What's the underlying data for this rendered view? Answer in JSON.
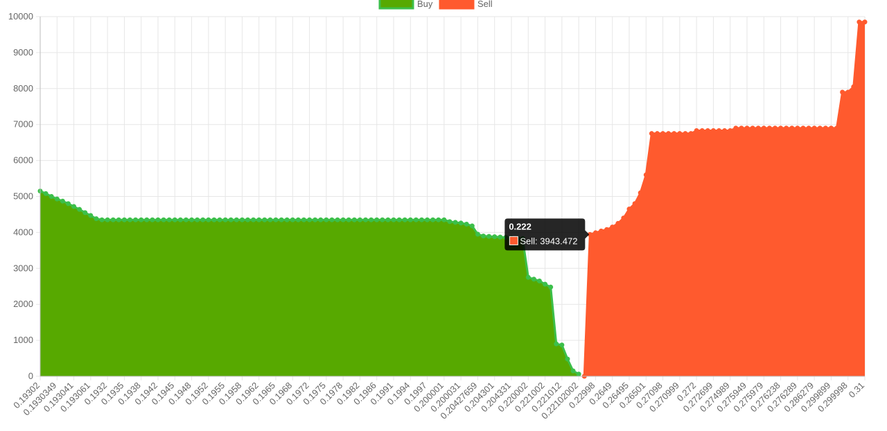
{
  "chart_data": {
    "type": "area",
    "categories": [
      "0.19302",
      null,
      null,
      "0.1930349",
      null,
      null,
      "0.193041",
      null,
      null,
      "0.193061",
      null,
      null,
      "0.1932",
      null,
      null,
      "0.1935",
      null,
      null,
      "0.1938",
      null,
      null,
      "0.1942",
      null,
      null,
      "0.1945",
      null,
      null,
      "0.1948",
      null,
      null,
      "0.1952",
      null,
      null,
      "0.1955",
      null,
      null,
      "0.1958",
      null,
      null,
      "0.1962",
      null,
      null,
      "0.1965",
      null,
      null,
      "0.1968",
      null,
      null,
      "0.1972",
      null,
      null,
      "0.1975",
      null,
      null,
      "0.1978",
      null,
      null,
      "0.1982",
      null,
      null,
      "0.1986",
      null,
      null,
      "0.1991",
      null,
      null,
      "0.1994",
      null,
      null,
      "0.1997",
      null,
      null,
      "0.200001",
      null,
      null,
      "0.200031",
      null,
      null,
      "0.20427659",
      null,
      null,
      "0.204301",
      null,
      null,
      "0.204331",
      null,
      null,
      "0.220002",
      null,
      null,
      "0.221002",
      null,
      null,
      "0.221012",
      null,
      null,
      "0.22102002",
      null,
      null,
      "0.22998",
      null,
      null,
      "0.2649",
      null,
      null,
      "0.26495",
      null,
      null,
      "0.26501",
      null,
      null,
      "0.27098",
      null,
      null,
      "0.270999",
      null,
      null,
      "0.272",
      null,
      null,
      "0.272699",
      null,
      null,
      "0.274989",
      null,
      null,
      "0.275949",
      null,
      null,
      "0.275979",
      null,
      null,
      "0.276238",
      null,
      null,
      "0.276289",
      null,
      null,
      "0.286279",
      null,
      null,
      "0.299899",
      null,
      null,
      "0.299998",
      null,
      null,
      "0.31"
    ],
    "series": [
      {
        "name": "Buy",
        "color": "#57a900",
        "stroke": "#3cbf4a",
        "values": [
          5150,
          5080,
          5000,
          4930,
          4870,
          4800,
          4720,
          4640,
          4550,
          4470,
          4380,
          4350,
          4350,
          4350,
          4350,
          4350,
          4350,
          4350,
          4350,
          4350,
          4350,
          4350,
          4350,
          4350,
          4350,
          4350,
          4350,
          4350,
          4350,
          4350,
          4350,
          4350,
          4350,
          4350,
          4350,
          4350,
          4350,
          4350,
          4350,
          4350,
          4350,
          4350,
          4350,
          4350,
          4350,
          4350,
          4350,
          4350,
          4350,
          4350,
          4350,
          4350,
          4350,
          4350,
          4350,
          4350,
          4350,
          4350,
          4350,
          4350,
          4350,
          4350,
          4350,
          4350,
          4350,
          4350,
          4350,
          4350,
          4350,
          4350,
          4350,
          4350,
          4350,
          4300,
          4280,
          4260,
          4230,
          4180,
          3950,
          3900,
          3890,
          3880,
          3870,
          3860,
          3850,
          3840,
          3830,
          2750,
          2700,
          2650,
          2560,
          2480,
          900,
          870,
          480,
          150,
          60,
          null,
          null,
          null,
          null,
          null,
          null,
          null,
          null,
          null,
          null,
          null,
          null,
          null,
          null,
          null,
          null,
          null,
          null,
          null,
          null,
          null,
          null,
          null,
          null,
          null,
          null,
          null,
          null,
          null,
          null,
          null,
          null,
          null,
          null,
          null,
          null,
          null,
          null,
          null,
          null,
          null,
          null,
          null,
          null,
          null,
          null,
          null,
          null,
          null,
          null,
          null
        ]
      },
      {
        "name": "Sell",
        "color": "#ff5a2e",
        "stroke": "#ff5a2e",
        "values": [
          null,
          null,
          null,
          null,
          null,
          null,
          null,
          null,
          null,
          null,
          null,
          null,
          null,
          null,
          null,
          null,
          null,
          null,
          null,
          null,
          null,
          null,
          null,
          null,
          null,
          null,
          null,
          null,
          null,
          null,
          null,
          null,
          null,
          null,
          null,
          null,
          null,
          null,
          null,
          null,
          null,
          null,
          null,
          null,
          null,
          null,
          null,
          null,
          null,
          null,
          null,
          null,
          null,
          null,
          null,
          null,
          null,
          null,
          null,
          null,
          null,
          null,
          null,
          null,
          null,
          null,
          null,
          null,
          null,
          null,
          null,
          null,
          null,
          null,
          null,
          null,
          null,
          null,
          null,
          null,
          null,
          null,
          null,
          null,
          null,
          null,
          null,
          null,
          null,
          null,
          null,
          null,
          null,
          null,
          null,
          null,
          null,
          0,
          3943.472,
          3990,
          4040,
          4080,
          4150,
          4250,
          4400,
          4650,
          4800,
          5100,
          5600,
          6750,
          6750,
          6750,
          6750,
          6750,
          6750,
          6750,
          6750,
          6830,
          6830,
          6830,
          6830,
          6830,
          6830,
          6830,
          6900,
          6900,
          6900,
          6900,
          6900,
          6900,
          6900,
          6900,
          6900,
          6900,
          6900,
          6900,
          6900,
          6900,
          6900,
          6900,
          6900,
          6900,
          6900,
          7900,
          7900,
          8050,
          9850,
          9850
        ]
      }
    ],
    "ylim": [
      0,
      10000
    ],
    "yticks": [
      0,
      1000,
      2000,
      3000,
      4000,
      5000,
      6000,
      7000,
      8000,
      9000,
      10000
    ],
    "grid": true,
    "legend": "top",
    "tooltip": {
      "title": "0.222",
      "label": "Sell: 3943.472",
      "series": 1,
      "index": 98
    }
  }
}
